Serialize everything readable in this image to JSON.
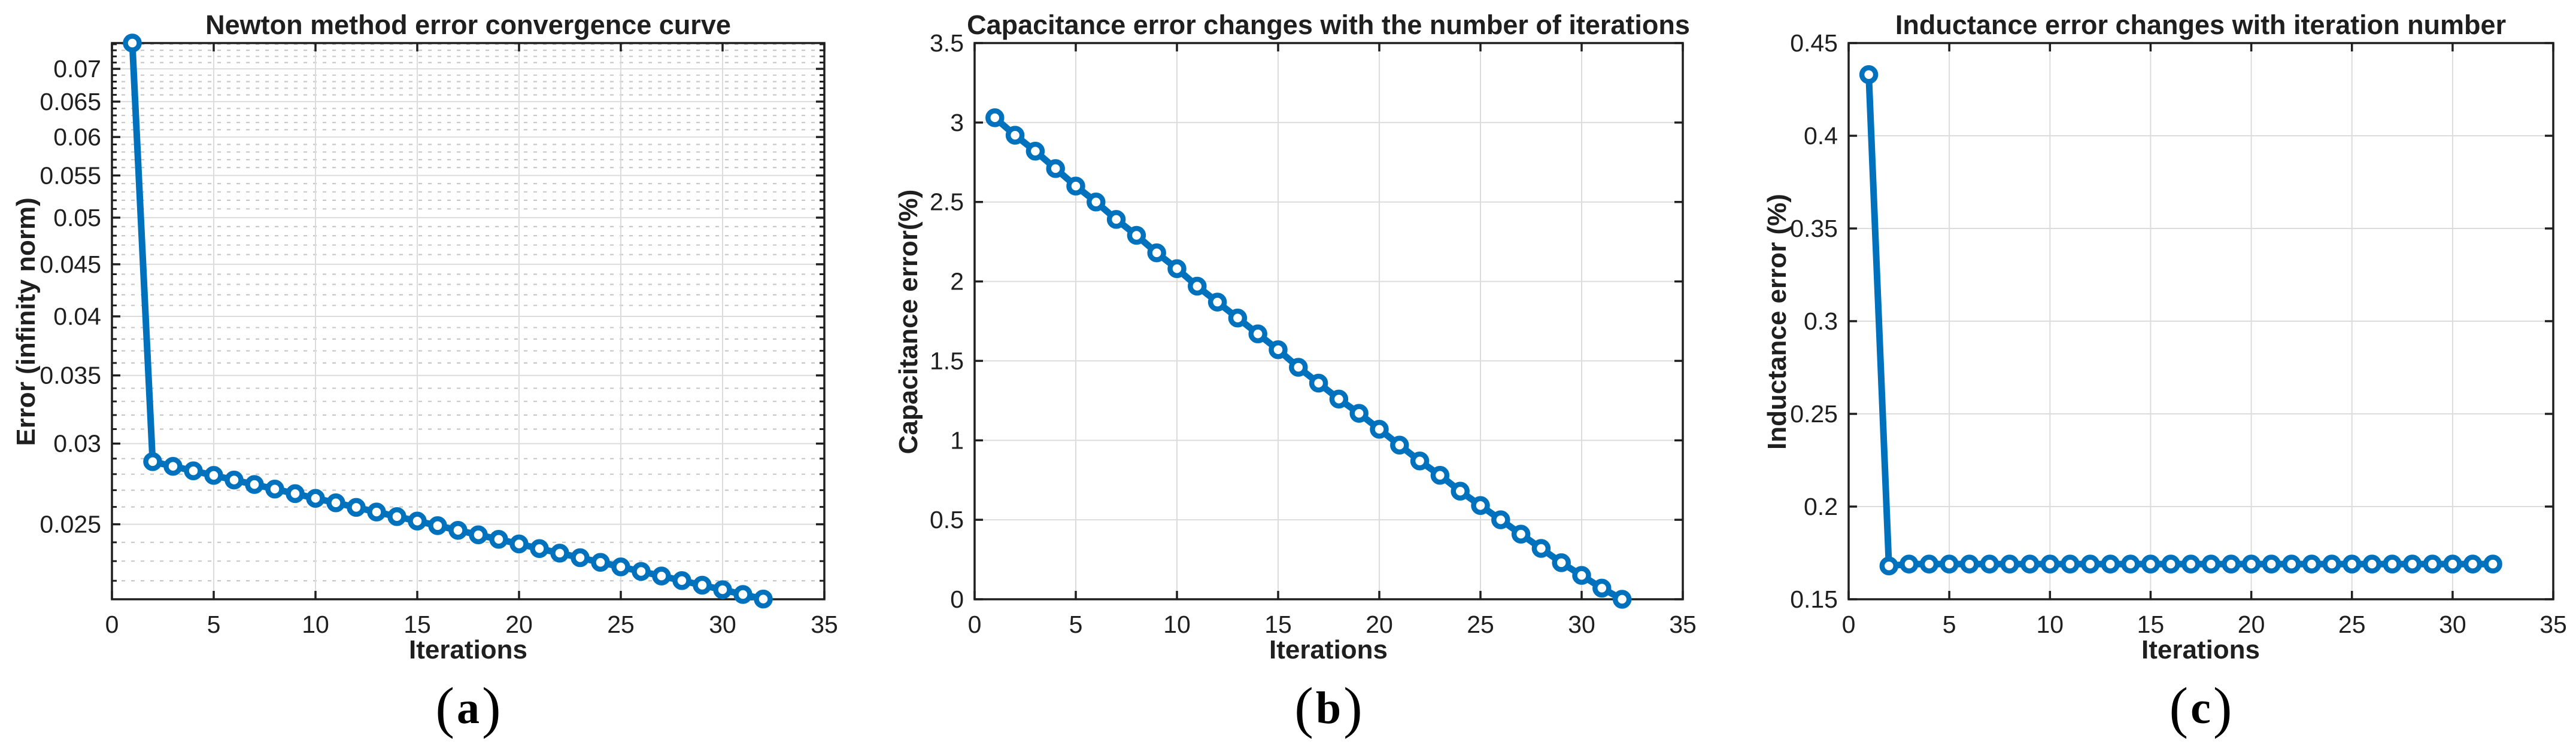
{
  "figure": {
    "background": "#ffffff",
    "accent_blue": "#0072BD",
    "axis_color": "#1f1f1f",
    "major_grid_color": "#dcdcdc",
    "minor_grid_color": "#c8c8c8"
  },
  "chart_data": [
    {
      "type": "line",
      "title": "Newton method error convergence curve",
      "xlabel": "Iterations",
      "ylabel": "Error (infinity norm)",
      "caption": {
        "open": "(",
        "letter": "a",
        "close": ")"
      },
      "yscale": "log",
      "xlim": [
        0,
        35
      ],
      "ylim": [
        0.0211,
        0.0742
      ],
      "xtick_values": [
        0,
        5,
        10,
        15,
        20,
        25,
        30,
        35
      ],
      "xtick_labels": [
        "0",
        "5",
        "10",
        "15",
        "20",
        "25",
        "30",
        "35"
      ],
      "ytick_values": [
        0.025,
        0.03,
        0.035,
        0.04,
        0.045,
        0.05,
        0.055,
        0.06,
        0.065,
        0.07
      ],
      "ytick_labels": [
        "0.025",
        "0.03",
        "0.035",
        "0.04",
        "0.045",
        "0.05",
        "0.055",
        "0.06",
        "0.065",
        "0.07"
      ],
      "y_minor_grid": true,
      "grid": "on",
      "legend": "none",
      "line_color": "#0072BD",
      "marker": "o",
      "x": [
        1,
        2,
        3,
        4,
        5,
        6,
        7,
        8,
        9,
        10,
        11,
        12,
        13,
        14,
        15,
        16,
        17,
        18,
        19,
        20,
        21,
        22,
        23,
        24,
        25,
        26,
        27,
        28,
        29,
        30,
        31,
        32
      ],
      "y": [
        0.0742,
        0.0288,
        0.0285,
        0.02821,
        0.02792,
        0.02763,
        0.02735,
        0.02707,
        0.02679,
        0.02651,
        0.02624,
        0.02597,
        0.0257,
        0.02544,
        0.02518,
        0.02492,
        0.02466,
        0.02441,
        0.02416,
        0.02391,
        0.02366,
        0.02342,
        0.02318,
        0.02294,
        0.0227,
        0.02247,
        0.02224,
        0.02201,
        0.02178,
        0.02156,
        0.02133,
        0.02111
      ]
    },
    {
      "type": "line",
      "title": "Capacitance error changes with the number of iterations",
      "xlabel": "Iterations",
      "ylabel": "Capacitance error(%)",
      "caption": {
        "open": "(",
        "letter": "b",
        "close": ")"
      },
      "yscale": "linear",
      "xlim": [
        0,
        35
      ],
      "ylim": [
        0,
        3.5
      ],
      "xtick_values": [
        0,
        5,
        10,
        15,
        20,
        25,
        30,
        35
      ],
      "xtick_labels": [
        "0",
        "5",
        "10",
        "15",
        "20",
        "25",
        "30",
        "35"
      ],
      "ytick_values": [
        0,
        0.5,
        1,
        1.5,
        2,
        2.5,
        3,
        3.5
      ],
      "ytick_labels": [
        "0",
        "0.5",
        "1",
        "1.5",
        "2",
        "2.5",
        "3",
        "3.5"
      ],
      "y_minor_grid": false,
      "grid": "on",
      "legend": "none",
      "line_color": "#0072BD",
      "marker": "o",
      "x": [
        1,
        2,
        3,
        4,
        5,
        6,
        7,
        8,
        9,
        10,
        11,
        12,
        13,
        14,
        15,
        16,
        17,
        18,
        19,
        20,
        21,
        22,
        23,
        24,
        25,
        26,
        27,
        28,
        29,
        30,
        31,
        32
      ],
      "y": [
        3.03,
        2.92,
        2.82,
        2.71,
        2.6,
        2.5,
        2.39,
        2.29,
        2.18,
        2.08,
        1.97,
        1.87,
        1.77,
        1.67,
        1.57,
        1.46,
        1.36,
        1.26,
        1.17,
        1.07,
        0.97,
        0.87,
        0.78,
        0.68,
        0.59,
        0.5,
        0.41,
        0.32,
        0.23,
        0.15,
        0.07,
        0.0
      ]
    },
    {
      "type": "line",
      "title": "Inductance error changes with iteration number",
      "xlabel": "Iterations",
      "ylabel": "Inductance error (%)",
      "caption": {
        "open": "(",
        "letter": "c",
        "close": ")"
      },
      "yscale": "linear",
      "xlim": [
        0,
        35
      ],
      "ylim": [
        0.15,
        0.45
      ],
      "xtick_values": [
        0,
        5,
        10,
        15,
        20,
        25,
        30,
        35
      ],
      "xtick_labels": [
        "0",
        "5",
        "10",
        "15",
        "20",
        "25",
        "30",
        "35"
      ],
      "ytick_values": [
        0.15,
        0.2,
        0.25,
        0.3,
        0.35,
        0.4,
        0.45
      ],
      "ytick_labels": [
        "0.15",
        "0.2",
        "0.25",
        "0.3",
        "0.35",
        "0.4",
        "0.45"
      ],
      "y_minor_grid": false,
      "grid": "on",
      "legend": "none",
      "line_color": "#0072BD",
      "marker": "o",
      "x": [
        1,
        2,
        3,
        4,
        5,
        6,
        7,
        8,
        9,
        10,
        11,
        12,
        13,
        14,
        15,
        16,
        17,
        18,
        19,
        20,
        21,
        22,
        23,
        24,
        25,
        26,
        27,
        28,
        29,
        30,
        31,
        32
      ],
      "y": [
        0.433,
        0.168,
        0.169,
        0.169,
        0.169,
        0.169,
        0.169,
        0.169,
        0.169,
        0.169,
        0.169,
        0.169,
        0.169,
        0.169,
        0.169,
        0.169,
        0.169,
        0.169,
        0.169,
        0.169,
        0.169,
        0.169,
        0.169,
        0.169,
        0.169,
        0.169,
        0.169,
        0.169,
        0.169,
        0.169,
        0.169,
        0.169
      ]
    }
  ]
}
